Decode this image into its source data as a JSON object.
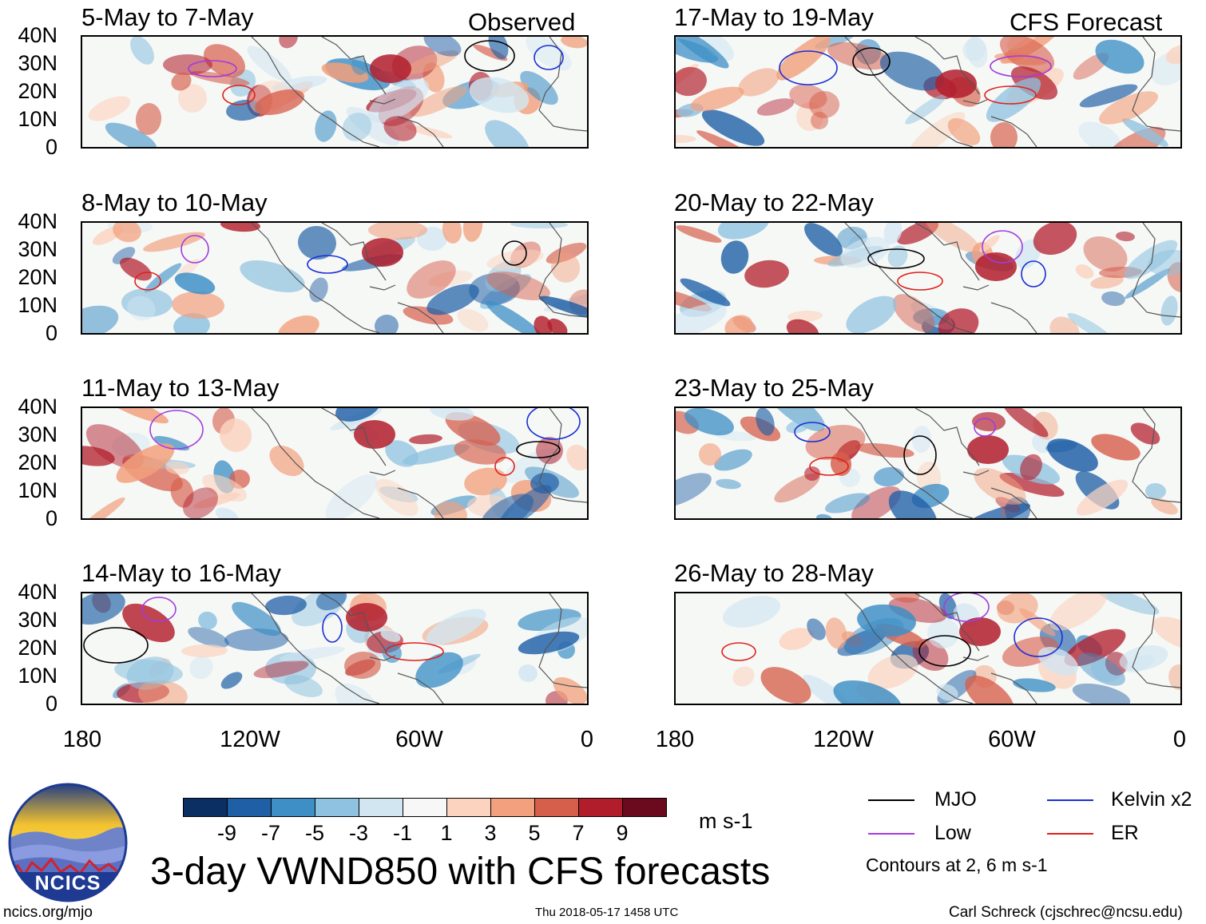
{
  "panels": [
    {
      "title": "5-May to 7-May",
      "tag": "Observed"
    },
    {
      "title": "17-May to 19-May",
      "tag": "CFS Forecast"
    },
    {
      "title": "8-May to 10-May",
      "tag": ""
    },
    {
      "title": "20-May to 22-May",
      "tag": ""
    },
    {
      "title": "11-May to 13-May",
      "tag": ""
    },
    {
      "title": "23-May to 25-May",
      "tag": ""
    },
    {
      "title": "14-May to 16-May",
      "tag": ""
    },
    {
      "title": "26-May to 28-May",
      "tag": ""
    }
  ],
  "y_axis_labels": [
    "40N",
    "30N",
    "20N",
    "10N",
    "0"
  ],
  "x_axis_labels": [
    "180",
    "120W",
    "60W",
    "0"
  ],
  "colorbar": {
    "colors": [
      "#0b2f63",
      "#1f5fa6",
      "#3d8fc6",
      "#8ec2e0",
      "#d2e6f2",
      "#f7f7f7",
      "#fbd3bf",
      "#f2a07d",
      "#d65f4c",
      "#b21d2b",
      "#6b0a1e"
    ],
    "labels": [
      "-9",
      "-7",
      "-5",
      "-3",
      "-1",
      "1",
      "3",
      "5",
      "7",
      "9"
    ],
    "unit": "m s-1"
  },
  "legend": {
    "items": [
      {
        "label": "MJO",
        "color": "#000000"
      },
      {
        "label": "Kelvin x2",
        "color": "#1a2ed6"
      },
      {
        "label": "Low",
        "color": "#a23be0"
      },
      {
        "label": "ER",
        "color": "#e0201c"
      }
    ],
    "note": "Contours at 2, 6 m s-1"
  },
  "logo": {
    "text": "NCICS"
  },
  "title": "3-day VWND850 with CFS forecasts",
  "footer": {
    "left": "ncics.org/mjo",
    "center": "Thu 2018-05-17 1458 UTC",
    "right": "Carl Schreck (cjschrec@ncsu.edu)"
  }
}
